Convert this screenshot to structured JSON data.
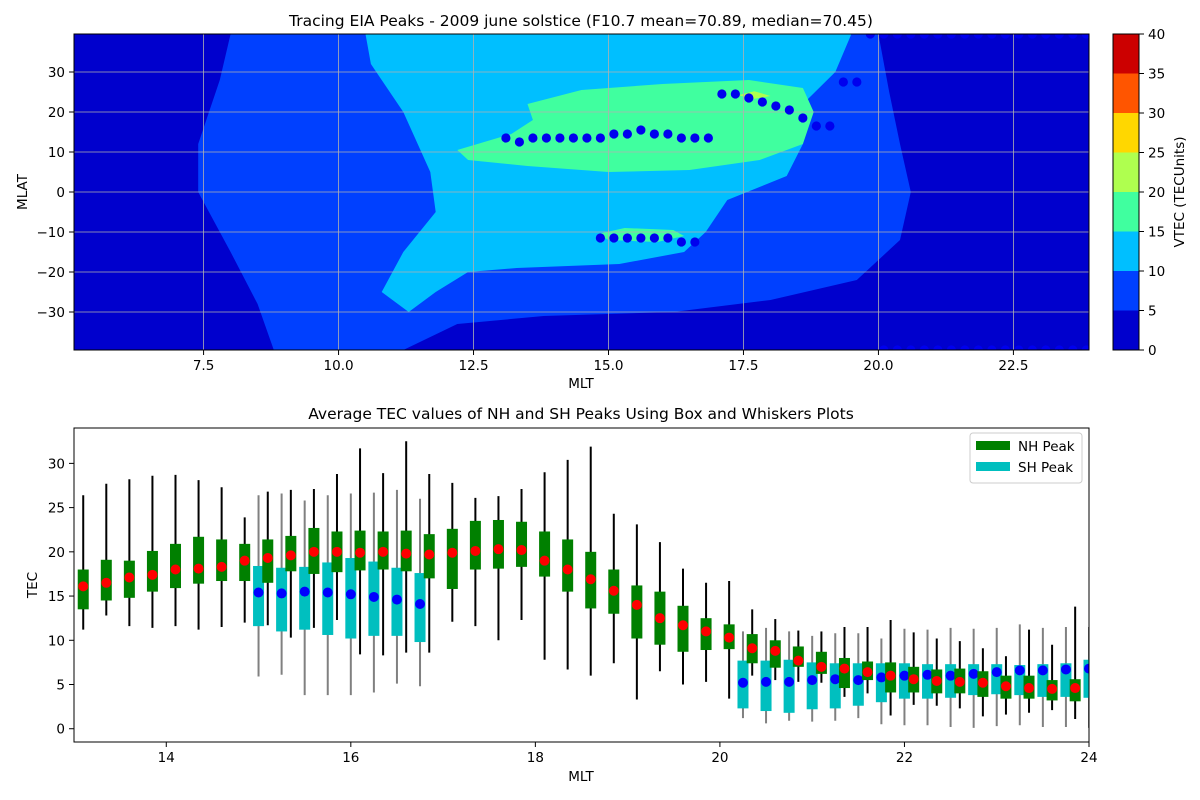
{
  "colors": {
    "contour_levels": [
      "#0000cd",
      "#0040ff",
      "#00bfff",
      "#40ff9f",
      "#afff4f",
      "#ffd700",
      "#ff5500",
      "#cc0000"
    ],
    "peak_marker": "#0000ee",
    "nh_box": "#008000",
    "sh_box": "#00bfbf",
    "nh_mean": "#ff0000",
    "sh_mean": "#0000ff",
    "nh_whisker": "#000000",
    "sh_whisker": "#808080",
    "grid": "#b0b0b0"
  },
  "chart_data": [
    {
      "type": "heatmap",
      "title": "Tracing EIA Peaks - 2009 june solstice (F10.7 mean=70.89, median=70.45)",
      "xlabel": "MLT",
      "ylabel": "MLAT",
      "xlim": [
        5.1,
        23.9
      ],
      "ylim": [
        -39.5,
        39.5
      ],
      "xticks": [
        7.5,
        10.0,
        12.5,
        15.0,
        17.5,
        20.0,
        22.5
      ],
      "xtick_labels": [
        "7.5",
        "10.0",
        "12.5",
        "15.0",
        "17.5",
        "20.0",
        "22.5"
      ],
      "yticks": [
        -30,
        -20,
        -10,
        0,
        10,
        20,
        30
      ],
      "ytick_labels": [
        "−30",
        "−20",
        "−10",
        "0",
        "10",
        "20",
        "30"
      ],
      "grid": true,
      "colorbar": {
        "label": "VTEC (TECUnits)",
        "levels": [
          0,
          5,
          10,
          15,
          20,
          25,
          30,
          35,
          40
        ],
        "tick_labels": [
          "0",
          "5",
          "10",
          "15",
          "20",
          "25",
          "30",
          "35",
          "40"
        ]
      },
      "contour_regions": [
        {
          "level": 1,
          "points": [
            [
              8.0,
              39.5
            ],
            [
              11.2,
              39.5
            ],
            [
              20.0,
              39.5
            ],
            [
              20.2,
              25
            ],
            [
              20.4,
              12
            ],
            [
              20.6,
              0
            ],
            [
              20.4,
              -12
            ],
            [
              19.6,
              -22
            ],
            [
              18.0,
              -27
            ],
            [
              16.2,
              -30
            ],
            [
              13.8,
              -31
            ],
            [
              12.2,
              -33
            ],
            [
              11.2,
              -39.5
            ],
            [
              8.8,
              -39.5
            ],
            [
              8.5,
              -28
            ],
            [
              8.0,
              -15
            ],
            [
              7.4,
              0
            ],
            [
              7.4,
              12
            ],
            [
              7.8,
              28
            ]
          ]
        },
        {
          "level": 2,
          "points": [
            [
              10.5,
              39.5
            ],
            [
              19.5,
              39.5
            ],
            [
              19.2,
              30
            ],
            [
              18.6,
              22
            ],
            [
              18.6,
              12
            ],
            [
              18.3,
              4
            ],
            [
              17.2,
              -2
            ],
            [
              16.8,
              -10
            ],
            [
              16.4,
              -15
            ],
            [
              15.2,
              -18
            ],
            [
              13.3,
              -19
            ],
            [
              12.4,
              -20
            ],
            [
              11.8,
              -25
            ],
            [
              11.3,
              -30
            ],
            [
              10.8,
              -25
            ],
            [
              11.2,
              -15
            ],
            [
              11.8,
              -5
            ],
            [
              11.7,
              5
            ],
            [
              11.2,
              20
            ],
            [
              10.6,
              32
            ]
          ]
        },
        {
          "level": 3,
          "points": [
            [
              12.2,
              10.5
            ],
            [
              13.2,
              14.5
            ],
            [
              13.6,
              18
            ],
            [
              13.5,
              22
            ],
            [
              14.5,
              25.5
            ],
            [
              16.0,
              27
            ],
            [
              17.6,
              28
            ],
            [
              18.6,
              26
            ],
            [
              18.8,
              20
            ],
            [
              18.6,
              12
            ],
            [
              17.8,
              8
            ],
            [
              16.5,
              5.5
            ],
            [
              15.0,
              5
            ],
            [
              13.5,
              6.5
            ],
            [
              12.4,
              8
            ]
          ]
        },
        {
          "level": 3,
          "points": [
            [
              14.8,
              -10.5
            ],
            [
              15.3,
              -9
            ],
            [
              16.2,
              -9.5
            ],
            [
              16.4,
              -11
            ],
            [
              15.9,
              -12.5
            ],
            [
              15.0,
              -12
            ]
          ]
        },
        {
          "level": 4,
          "points": [
            [
              17.4,
              24.2
            ],
            [
              17.7,
              25.2
            ],
            [
              18.0,
              24.0
            ],
            [
              17.7,
              23.3
            ]
          ]
        }
      ],
      "nh_peaks": {
        "x": [
          13.1,
          13.35,
          13.6,
          13.85,
          14.1,
          14.35,
          14.6,
          14.85,
          15.1,
          15.35,
          15.6,
          15.85,
          16.1,
          16.35,
          16.6,
          16.85,
          17.1,
          17.35,
          17.6,
          17.85,
          18.1,
          18.35,
          18.6,
          18.85,
          19.1,
          19.35,
          19.6
        ],
        "y": [
          13.5,
          12.5,
          13.5,
          13.5,
          13.5,
          13.5,
          13.5,
          13.5,
          14.5,
          14.5,
          15.5,
          14.5,
          14.5,
          13.5,
          13.5,
          13.5,
          24.5,
          24.5,
          23.5,
          22.5,
          21.5,
          20.5,
          18.5,
          16.5,
          16.5,
          27.5,
          27.5
        ]
      },
      "sh_peaks": {
        "x": [
          14.85,
          15.1,
          15.35,
          15.6,
          15.85,
          16.1,
          16.35,
          16.6
        ],
        "y": [
          -11.5,
          -11.5,
          -11.5,
          -11.5,
          -11.5,
          -11.5,
          -12.5,
          -12.5
        ]
      },
      "edge_markers_top": {
        "x": [
          19.85,
          20.1,
          20.35,
          20.6,
          20.85,
          21.1,
          21.35,
          21.6,
          21.85,
          22.1,
          22.35,
          22.6,
          22.85,
          23.1,
          23.35,
          23.6,
          23.85
        ],
        "y": 39.5
      },
      "edge_markers_bottom": {
        "x": [
          20.1,
          20.35,
          20.6,
          20.85,
          21.1,
          21.35,
          21.6,
          21.85,
          22.1,
          22.35,
          22.6,
          22.85,
          23.1,
          23.35,
          23.6,
          23.85
        ],
        "y": -39.5
      }
    },
    {
      "type": "box",
      "title": "Average TEC values of NH and SH Peaks Using Box and Whiskers Plots",
      "xlabel": "MLT",
      "ylabel": "TEC",
      "xlim": [
        13,
        24
      ],
      "ylim": [
        -1.5,
        34
      ],
      "xticks": [
        14,
        16,
        18,
        20,
        22,
        24
      ],
      "xtick_labels": [
        "14",
        "16",
        "18",
        "20",
        "22",
        "24"
      ],
      "yticks": [
        0,
        5,
        10,
        15,
        20,
        25,
        30
      ],
      "ytick_labels": [
        "0",
        "5",
        "10",
        "15",
        "20",
        "25",
        "30"
      ],
      "grid": false,
      "legend_position": "top-right",
      "legend": [
        "NH Peak",
        "SH Peak"
      ],
      "nh": [
        {
          "x": 13.1,
          "min": 11.2,
          "q1": 13.5,
          "q3": 18.0,
          "max": 26.4,
          "mean": 16.1
        },
        {
          "x": 13.35,
          "min": 12.8,
          "q1": 14.5,
          "q3": 19.1,
          "max": 27.7,
          "mean": 16.5
        },
        {
          "x": 13.6,
          "min": 11.6,
          "q1": 14.8,
          "q3": 19.0,
          "max": 28.2,
          "mean": 17.1
        },
        {
          "x": 13.85,
          "min": 11.4,
          "q1": 15.5,
          "q3": 20.1,
          "max": 28.6,
          "mean": 17.4
        },
        {
          "x": 14.1,
          "min": 11.6,
          "q1": 15.9,
          "q3": 20.9,
          "max": 28.7,
          "mean": 18.0
        },
        {
          "x": 14.35,
          "min": 11.2,
          "q1": 16.4,
          "q3": 21.7,
          "max": 28.1,
          "mean": 18.1
        },
        {
          "x": 14.6,
          "min": 11.5,
          "q1": 16.7,
          "q3": 21.4,
          "max": 27.3,
          "mean": 18.3
        },
        {
          "x": 14.85,
          "min": 12.0,
          "q1": 16.7,
          "q3": 20.9,
          "max": 23.9,
          "mean": 19.0
        },
        {
          "x": 15.1,
          "min": 11.7,
          "q1": 16.5,
          "q3": 21.4,
          "max": 26.8,
          "mean": 19.3
        },
        {
          "x": 15.35,
          "min": 10.3,
          "q1": 17.8,
          "q3": 21.8,
          "max": 27.0,
          "mean": 19.6
        },
        {
          "x": 15.6,
          "min": 11.4,
          "q1": 17.5,
          "q3": 22.7,
          "max": 27.1,
          "mean": 20.0
        },
        {
          "x": 15.85,
          "min": 12.3,
          "q1": 17.7,
          "q3": 22.3,
          "max": 28.8,
          "mean": 20.0
        },
        {
          "x": 16.1,
          "min": 8.4,
          "q1": 17.9,
          "q3": 22.4,
          "max": 31.7,
          "mean": 19.9
        },
        {
          "x": 16.35,
          "min": 8.3,
          "q1": 18.0,
          "q3": 22.3,
          "max": 28.9,
          "mean": 20.0
        },
        {
          "x": 16.6,
          "min": 8.6,
          "q1": 17.8,
          "q3": 22.4,
          "max": 32.5,
          "mean": 19.8
        },
        {
          "x": 16.85,
          "min": 8.6,
          "q1": 17.0,
          "q3": 22.0,
          "max": 28.8,
          "mean": 19.7
        },
        {
          "x": 17.1,
          "min": 12.1,
          "q1": 15.8,
          "q3": 22.6,
          "max": 27.8,
          "mean": 19.9
        },
        {
          "x": 17.35,
          "min": 11.6,
          "q1": 18.0,
          "q3": 23.5,
          "max": 26.1,
          "mean": 20.1
        },
        {
          "x": 17.6,
          "min": 10.0,
          "q1": 18.1,
          "q3": 23.6,
          "max": 26.3,
          "mean": 20.3
        },
        {
          "x": 17.85,
          "min": 12.3,
          "q1": 18.3,
          "q3": 23.4,
          "max": 27.1,
          "mean": 20.2
        },
        {
          "x": 18.1,
          "min": 7.8,
          "q1": 17.2,
          "q3": 22.3,
          "max": 29.0,
          "mean": 19.0
        },
        {
          "x": 18.35,
          "min": 6.7,
          "q1": 15.5,
          "q3": 21.4,
          "max": 30.4,
          "mean": 18.0
        },
        {
          "x": 18.6,
          "min": 6.0,
          "q1": 13.6,
          "q3": 20.0,
          "max": 31.9,
          "mean": 16.9
        },
        {
          "x": 18.85,
          "min": 7.4,
          "q1": 13.0,
          "q3": 18.0,
          "max": 24.3,
          "mean": 15.6
        },
        {
          "x": 19.1,
          "min": 3.3,
          "q1": 10.2,
          "q3": 16.2,
          "max": 23.1,
          "mean": 14.0
        },
        {
          "x": 19.35,
          "min": 6.5,
          "q1": 9.5,
          "q3": 15.5,
          "max": 21.1,
          "mean": 12.5
        },
        {
          "x": 19.6,
          "min": 5.0,
          "q1": 8.7,
          "q3": 13.9,
          "max": 18.1,
          "mean": 11.7
        },
        {
          "x": 19.85,
          "min": 5.3,
          "q1": 8.9,
          "q3": 12.5,
          "max": 16.5,
          "mean": 11.0
        },
        {
          "x": 20.1,
          "min": 3.4,
          "q1": 9.0,
          "q3": 11.8,
          "max": 16.7,
          "mean": 10.3
        },
        {
          "x": 20.35,
          "min": 6.0,
          "q1": 7.4,
          "q3": 10.7,
          "max": 13.5,
          "mean": 9.1
        },
        {
          "x": 20.6,
          "min": 5.5,
          "q1": 6.9,
          "q3": 10.0,
          "max": 12.4,
          "mean": 8.8
        },
        {
          "x": 20.85,
          "min": 5.3,
          "q1": 7.0,
          "q3": 9.3,
          "max": 11.1,
          "mean": 7.7
        },
        {
          "x": 21.1,
          "min": 5.2,
          "q1": 6.2,
          "q3": 8.7,
          "max": 11.0,
          "mean": 7.0
        },
        {
          "x": 21.35,
          "min": 3.6,
          "q1": 4.6,
          "q3": 8.0,
          "max": 11.5,
          "mean": 6.8
        },
        {
          "x": 21.6,
          "min": 4.0,
          "q1": 5.5,
          "q3": 7.6,
          "max": 11.5,
          "mean": 6.4
        },
        {
          "x": 21.85,
          "min": 1.5,
          "q1": 4.1,
          "q3": 7.5,
          "max": 12.3,
          "mean": 6.0
        },
        {
          "x": 22.1,
          "min": 2.7,
          "q1": 4.1,
          "q3": 7.0,
          "max": 10.9,
          "mean": 5.6
        },
        {
          "x": 22.35,
          "min": 2.6,
          "q1": 4.0,
          "q3": 6.7,
          "max": 10.2,
          "mean": 5.4
        },
        {
          "x": 22.6,
          "min": 2.3,
          "q1": 4.0,
          "q3": 6.8,
          "max": 9.9,
          "mean": 5.3
        },
        {
          "x": 22.85,
          "min": 1.4,
          "q1": 3.6,
          "q3": 6.5,
          "max": 9.1,
          "mean": 5.2
        },
        {
          "x": 23.1,
          "min": 1.6,
          "q1": 3.4,
          "q3": 6.0,
          "max": 8.2,
          "mean": 4.8
        },
        {
          "x": 23.35,
          "min": 1.8,
          "q1": 3.4,
          "q3": 6.0,
          "max": 11.2,
          "mean": 4.6
        },
        {
          "x": 23.6,
          "min": 2.1,
          "q1": 3.2,
          "q3": 5.5,
          "max": 9.5,
          "mean": 4.5
        },
        {
          "x": 23.85,
          "min": 1.1,
          "q1": 3.1,
          "q3": 5.6,
          "max": 13.8,
          "mean": 4.6
        }
      ],
      "sh": [
        {
          "x": 15.0,
          "min": 5.9,
          "q1": 11.6,
          "q3": 18.4,
          "max": 26.4,
          "mean": 15.4
        },
        {
          "x": 15.25,
          "min": 6.1,
          "q1": 11.0,
          "q3": 18.2,
          "max": 26.6,
          "mean": 15.3
        },
        {
          "x": 15.5,
          "min": 3.8,
          "q1": 11.2,
          "q3": 18.3,
          "max": 25.8,
          "mean": 15.5
        },
        {
          "x": 15.75,
          "min": 3.8,
          "q1": 10.6,
          "q3": 18.8,
          "max": 26.4,
          "mean": 15.4
        },
        {
          "x": 16.0,
          "min": 3.8,
          "q1": 10.2,
          "q3": 19.3,
          "max": 26.6,
          "mean": 15.2
        },
        {
          "x": 16.25,
          "min": 4.1,
          "q1": 10.5,
          "q3": 18.9,
          "max": 26.7,
          "mean": 14.9
        },
        {
          "x": 16.5,
          "min": 5.1,
          "q1": 10.5,
          "q3": 18.2,
          "max": 27.0,
          "mean": 14.6
        },
        {
          "x": 16.75,
          "min": 4.8,
          "q1": 9.8,
          "q3": 17.6,
          "max": 26.0,
          "mean": 14.1
        },
        {
          "x": 20.25,
          "min": 1.2,
          "q1": 2.3,
          "q3": 7.7,
          "max": 11.0,
          "mean": 5.2
        },
        {
          "x": 20.5,
          "min": 0.6,
          "q1": 2.0,
          "q3": 7.7,
          "max": 11.4,
          "mean": 5.3
        },
        {
          "x": 20.75,
          "min": 0.9,
          "q1": 1.8,
          "q3": 7.8,
          "max": 11.0,
          "mean": 5.3
        },
        {
          "x": 21.0,
          "min": 0.8,
          "q1": 2.2,
          "q3": 7.5,
          "max": 10.5,
          "mean": 5.5
        },
        {
          "x": 21.25,
          "min": 0.9,
          "q1": 2.3,
          "q3": 7.4,
          "max": 10.8,
          "mean": 5.6
        },
        {
          "x": 21.5,
          "min": 1.2,
          "q1": 2.6,
          "q3": 7.4,
          "max": 10.8,
          "mean": 5.5
        },
        {
          "x": 21.75,
          "min": 0.5,
          "q1": 3.0,
          "q3": 7.4,
          "max": 10.2,
          "mean": 5.8
        },
        {
          "x": 22.0,
          "min": 0.4,
          "q1": 3.4,
          "q3": 7.4,
          "max": 11.3,
          "mean": 6.0
        },
        {
          "x": 22.25,
          "min": 0.4,
          "q1": 3.4,
          "q3": 7.3,
          "max": 11.2,
          "mean": 6.1
        },
        {
          "x": 22.5,
          "min": 0.2,
          "q1": 3.5,
          "q3": 7.3,
          "max": 11.4,
          "mean": 6.0
        },
        {
          "x": 22.75,
          "min": 0.1,
          "q1": 3.8,
          "q3": 7.3,
          "max": 11.3,
          "mean": 6.2
        },
        {
          "x": 23.0,
          "min": 0.3,
          "q1": 3.9,
          "q3": 7.3,
          "max": 11.4,
          "mean": 6.4
        },
        {
          "x": 23.25,
          "min": 0.4,
          "q1": 3.8,
          "q3": 7.2,
          "max": 11.8,
          "mean": 6.6
        },
        {
          "x": 23.5,
          "min": 0.2,
          "q1": 3.6,
          "q3": 7.3,
          "max": 11.4,
          "mean": 6.6
        },
        {
          "x": 23.75,
          "min": 0.2,
          "q1": 3.6,
          "q3": 7.4,
          "max": 11.5,
          "mean": 6.7
        },
        {
          "x": 24.0,
          "min": 0.1,
          "q1": 3.5,
          "q3": 7.8,
          "max": 11.5,
          "mean": 6.8
        }
      ]
    }
  ]
}
